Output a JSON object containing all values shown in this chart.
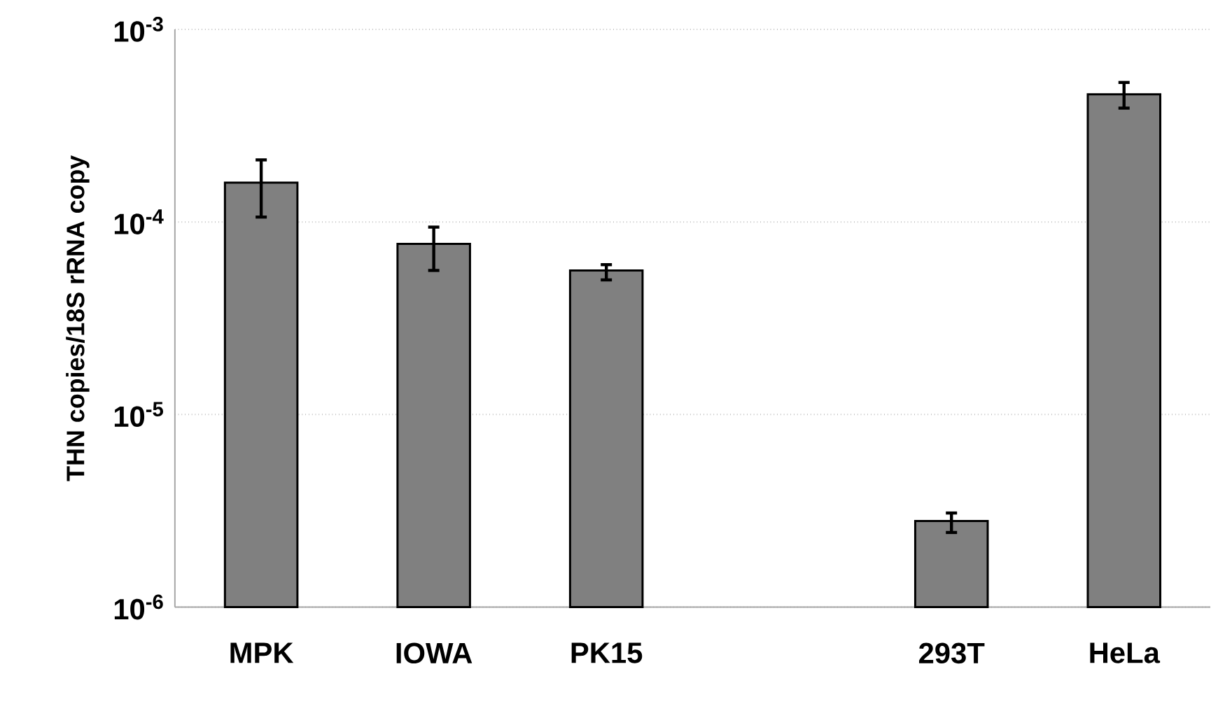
{
  "chart_data": {
    "type": "bar",
    "ylabel": "THN copies/18S rRNA copy",
    "categories": [
      "MPK",
      "IOWA",
      "PK15",
      null,
      "293T",
      "HeLa"
    ],
    "values": [
      0.00016,
      7.7e-05,
      5.6e-05,
      null,
      2.8e-06,
      0.00046
    ],
    "errors": [
      [
        0.000106,
        0.00021
      ],
      [
        5.6e-05,
        9.4e-05
      ],
      [
        5e-05,
        6e-05
      ],
      null,
      [
        2.44e-06,
        3.08e-06
      ],
      [
        0.00039,
        0.00053
      ]
    ],
    "color": "#808080",
    "log": "y",
    "ylim": [
      1e-06,
      0.001
    ],
    "yticks": [
      {
        "value": 1e-06,
        "label": "10$^{-6}$"
      },
      {
        "value": 1e-05,
        "label": "10$^{-5}$"
      },
      {
        "value": 0.0001,
        "label": "10$^{-4}$"
      },
      {
        "value": 0.001,
        "label": "10$^{-3}$"
      }
    ],
    "grid": "y"
  }
}
